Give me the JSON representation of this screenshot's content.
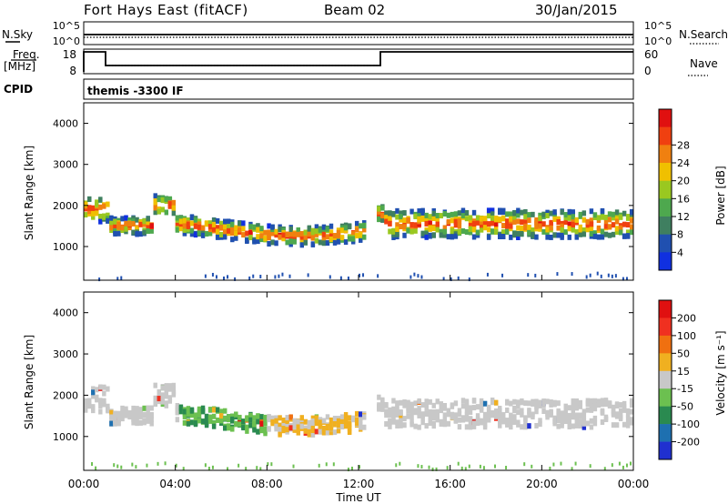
{
  "header": {
    "site": "Fort Hays East (fitACF)",
    "beam": "Beam 02",
    "date": "30/Jan/2015"
  },
  "noise_panel": {
    "left_label": "N.Sky",
    "left_ticks": [
      "10^5",
      "10^0"
    ],
    "right_label": "N.Search",
    "right_ticks": [
      "10^5",
      "10^0"
    ]
  },
  "freq_panel": {
    "left_label": "Freq.",
    "left_unit": "[MHz]",
    "left_ticks": [
      "18",
      "8"
    ],
    "right_label": "Nave",
    "right_ticks": [
      "60",
      "0"
    ]
  },
  "cpid_panel": {
    "label": "CPID",
    "value": "themis -3300 IF"
  },
  "colors": {
    "power": [
      "#1030e0",
      "#2050b0",
      "#3f7f60",
      "#4ea84e",
      "#9ac820",
      "#f0c000",
      "#f08010",
      "#f04010",
      "#e01010"
    ],
    "velocity": [
      "#2030d0",
      "#1e70b0",
      "#2a8a50",
      "#6cc050",
      "#c8c8c8",
      "#f0b020",
      "#f07010",
      "#f03020",
      "#e01010"
    ]
  },
  "chart_data": [
    {
      "type": "heatmap",
      "name": "power",
      "ylabel": "Slant Range [km]",
      "yticks": [
        1000,
        2000,
        3000,
        4000
      ],
      "ylim": [
        180,
        4500
      ],
      "xlim_hours": [
        0,
        24
      ],
      "colorbar_label": "Power [dB]",
      "colorbar_ticks": [
        4,
        8,
        12,
        16,
        20,
        24,
        28
      ]
    },
    {
      "type": "heatmap",
      "name": "velocity",
      "ylabel": "Slant Range [km]",
      "yticks": [
        1000,
        2000,
        3000,
        4000
      ],
      "ylim": [
        180,
        4500
      ],
      "xlim_hours": [
        0,
        24
      ],
      "colorbar_label": "Velocity [m s⁻¹]",
      "colorbar_ticks": [
        200,
        100,
        50,
        15,
        -15,
        -50,
        -100,
        -200
      ]
    }
  ],
  "x_axis": {
    "ticks": [
      "00:00",
      "04:00",
      "08:00",
      "12:00",
      "16:00",
      "20:00",
      "00:00"
    ],
    "label": "Time UT"
  }
}
